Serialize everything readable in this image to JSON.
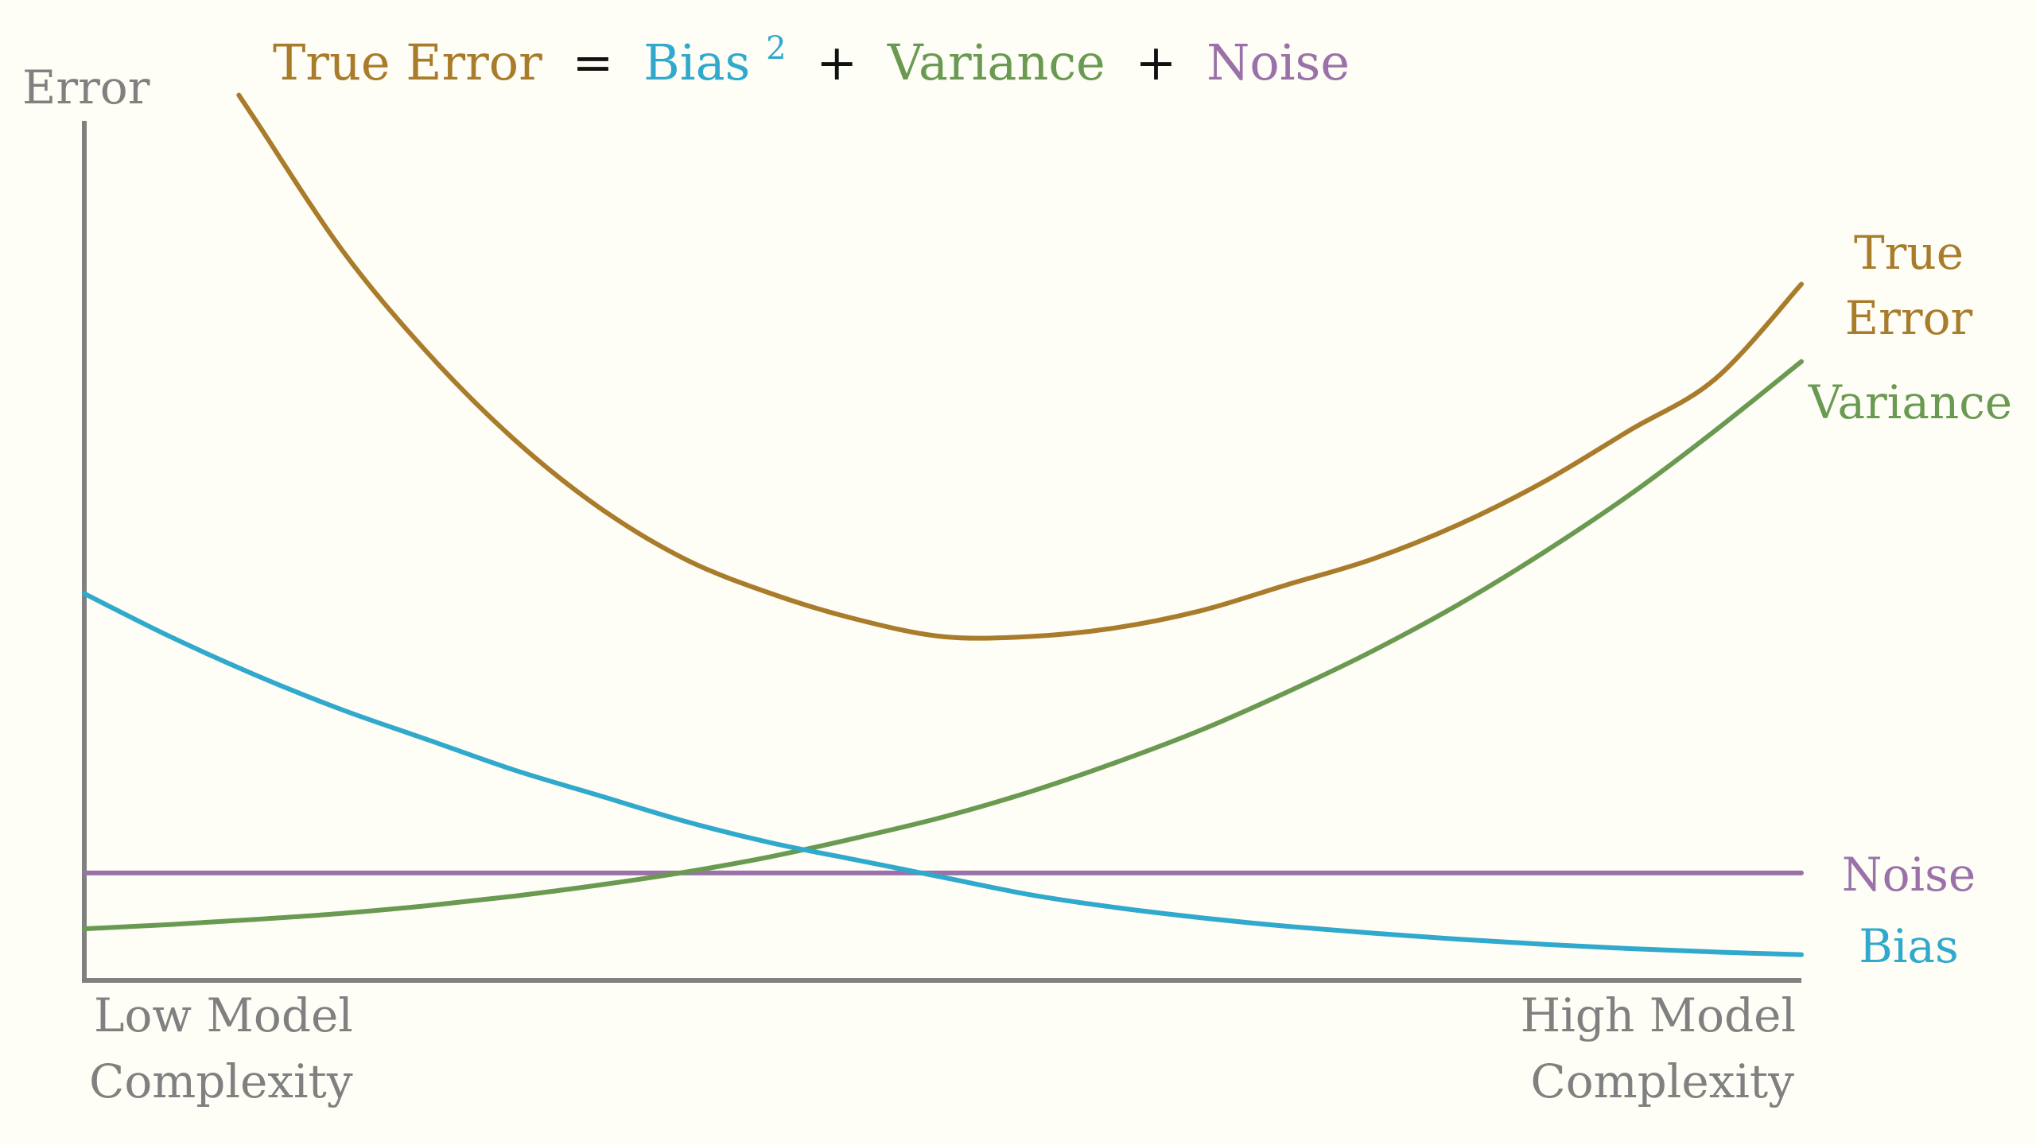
{
  "colors": {
    "background": "#fefdf6",
    "axis": "#808080",
    "true_error": "#a87c2a",
    "bias": "#30a9cc",
    "variance": "#6a9a51",
    "noise": "#9a72a9",
    "operator": "#111111"
  },
  "title": {
    "true_error": "True Error",
    "equals": "=",
    "bias": "Bias",
    "bias_superscript": "2",
    "plus1": "+",
    "variance": "Variance",
    "plus2": "+",
    "noise": "Noise"
  },
  "axes": {
    "ylabel": "Error",
    "x_low_line1": "Low Model",
    "x_low_line2": "Complexity",
    "x_high_line1": "High Model",
    "x_high_line2": "Complexity"
  },
  "series_labels": {
    "true_error_line1": "True",
    "true_error_line2": "Error",
    "variance": "Variance",
    "noise": "Noise",
    "bias": "Bias"
  },
  "chart_data": {
    "type": "line",
    "title": "True Error = Bias² + Variance + Noise",
    "xlabel": "Low Model Complexity … High Model Complexity",
    "ylabel": "Error",
    "xlim": [
      0,
      1
    ],
    "ylim": [
      0,
      1
    ],
    "grid": false,
    "legend": "none (direct labels at right end of lines)",
    "x": [
      0,
      0.05,
      0.1,
      0.15,
      0.2,
      0.25,
      0.3,
      0.35,
      0.4,
      0.45,
      0.5,
      0.55,
      0.6,
      0.65,
      0.7,
      0.75,
      0.8,
      0.85,
      0.9,
      0.95,
      1.0
    ],
    "series": [
      {
        "name": "Bias",
        "key": "bias",
        "values": [
          0.45,
          0.4,
          0.355,
          0.315,
          0.28,
          0.245,
          0.215,
          0.185,
          0.16,
          0.14,
          0.12,
          0.1,
          0.085,
          0.073,
          0.063,
          0.055,
          0.048,
          0.042,
          0.037,
          0.033,
          0.03
        ]
      },
      {
        "name": "Variance",
        "key": "variance",
        "values": [
          0.06,
          0.065,
          0.071,
          0.078,
          0.087,
          0.098,
          0.111,
          0.126,
          0.144,
          0.166,
          0.19,
          0.219,
          0.253,
          0.291,
          0.335,
          0.383,
          0.437,
          0.498,
          0.565,
          0.64,
          0.72
        ]
      },
      {
        "name": "Noise",
        "key": "noise",
        "values": [
          0.125,
          0.125,
          0.125,
          0.125,
          0.125,
          0.125,
          0.125,
          0.125,
          0.125,
          0.125,
          0.125,
          0.125,
          0.125,
          0.125,
          0.125,
          0.125,
          0.125,
          0.125,
          0.125,
          0.125,
          0.125
        ]
      },
      {
        "name": "True Error",
        "key": "true_error",
        "x_start": 0.09,
        "values": [
          null,
          null,
          1.0,
          0.85,
          0.73,
          0.63,
          0.55,
          0.49,
          0.45,
          0.42,
          0.4,
          0.4,
          0.41,
          0.43,
          0.46,
          0.49,
          0.53,
          0.58,
          0.64,
          0.7,
          0.81
        ]
      }
    ]
  }
}
